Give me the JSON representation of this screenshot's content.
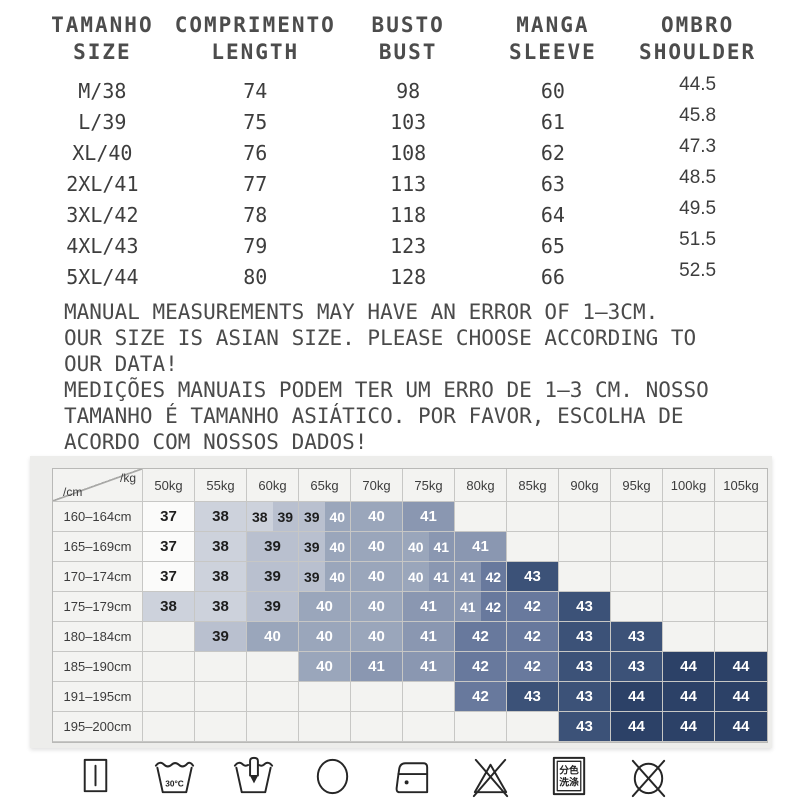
{
  "size_table": {
    "headers": [
      {
        "line1": "TAMANHO",
        "line2": "SIZE"
      },
      {
        "line1": "COMPRIMENTO",
        "line2": "LENGTH"
      },
      {
        "line1": "BUSTO",
        "line2": "BUST"
      },
      {
        "line1": "MANGA",
        "line2": "SLEEVE"
      },
      {
        "line1": "OMBRO",
        "line2": "SHOULDER"
      }
    ],
    "rows": [
      [
        "M/38",
        "74",
        "98",
        "60",
        "44.5"
      ],
      [
        "L/39",
        "75",
        "103",
        "61",
        "45.8"
      ],
      [
        "XL/40",
        "76",
        "108",
        "62",
        "47.3"
      ],
      [
        "2XL/41",
        "77",
        "113",
        "63",
        "48.5"
      ],
      [
        "3XL/42",
        "78",
        "118",
        "64",
        "49.5"
      ],
      [
        "4XL/43",
        "79",
        "123",
        "65",
        "51.5"
      ],
      [
        "5XL/44",
        "80",
        "128",
        "66",
        "52.5"
      ]
    ]
  },
  "notice": {
    "lines": [
      "MANUAL MEASUREMENTS MAY HAVE AN ERROR OF 1–3CM.",
      "OUR SIZE IS ASIAN SIZE. PLEASE CHOOSE ACCORDING TO",
      "OUR DATA!",
      "MEDIÇÕES MANUAIS PODEM TER UM ERRO DE 1–3 CM. NOSSO",
      "TAMANHO É TAMANHO ASIÁTICO. POR FAVOR, ESCOLHA DE",
      "ACORDO COM NOSSOS DADOS!"
    ]
  },
  "matrix": {
    "corner_top": "/kg",
    "corner_bottom": "/cm",
    "weight_columns": [
      "50kg",
      "55kg",
      "60kg",
      "65kg",
      "70kg",
      "75kg",
      "80kg",
      "85kg",
      "90kg",
      "95kg",
      "100kg",
      "105kg"
    ],
    "height_rows": [
      "160–164cm",
      "165–169cm",
      "170–174cm",
      "175–179cm",
      "180–184cm",
      "185–190cm",
      "191–195cm",
      "195–200cm"
    ],
    "cells": [
      [
        [
          "37"
        ],
        [
          "38"
        ],
        [
          "38",
          "39"
        ],
        [
          "39",
          "40"
        ],
        [
          "40"
        ],
        [
          "41"
        ],
        [],
        [],
        [],
        [],
        [],
        []
      ],
      [
        [
          "37"
        ],
        [
          "38"
        ],
        [
          "39"
        ],
        [
          "39",
          "40"
        ],
        [
          "40"
        ],
        [
          "40",
          "41"
        ],
        [
          "41"
        ],
        [],
        [],
        [],
        [],
        []
      ],
      [
        [
          "37"
        ],
        [
          "38"
        ],
        [
          "39"
        ],
        [
          "39",
          "40"
        ],
        [
          "40"
        ],
        [
          "40",
          "41"
        ],
        [
          "41",
          "42"
        ],
        [
          "43"
        ],
        [],
        [],
        [],
        []
      ],
      [
        [
          "38"
        ],
        [
          "38"
        ],
        [
          "39"
        ],
        [
          "40"
        ],
        [
          "40"
        ],
        [
          "41"
        ],
        [
          "41",
          "42"
        ],
        [
          "42"
        ],
        [
          "43"
        ],
        [],
        [],
        []
      ],
      [
        [],
        [
          "39"
        ],
        [
          "40"
        ],
        [
          "40"
        ],
        [
          "40"
        ],
        [
          "41"
        ],
        [
          "42"
        ],
        [
          "42"
        ],
        [
          "43"
        ],
        [
          "43"
        ],
        [],
        []
      ],
      [
        [],
        [],
        [],
        [
          "40"
        ],
        [
          "41"
        ],
        [
          "41"
        ],
        [
          "42"
        ],
        [
          "42"
        ],
        [
          "43"
        ],
        [
          "43"
        ],
        [
          "44"
        ],
        [
          "44"
        ]
      ],
      [
        [],
        [],
        [],
        [],
        [],
        [],
        [
          "42"
        ],
        [
          "43"
        ],
        [
          "43"
        ],
        [
          "44"
        ],
        [
          "44"
        ],
        [
          "44"
        ]
      ],
      [
        [],
        [],
        [],
        [],
        [],
        [],
        [],
        [],
        [
          "43"
        ],
        [
          "44"
        ],
        [
          "44"
        ],
        [
          "44"
        ]
      ]
    ],
    "size_styles": {
      "37": {
        "bg": "#fbfbfa",
        "fg": "#1e1e1e"
      },
      "38": {
        "bg": "#cdd2dc",
        "fg": "#1e1e1e"
      },
      "39": {
        "bg": "#b9c0cf",
        "fg": "#1e1e1e"
      },
      "40": {
        "bg": "#9aa6bb",
        "fg": "#ffffff"
      },
      "41": {
        "bg": "#8a97b1",
        "fg": "#ffffff"
      },
      "42": {
        "bg": "#68799d",
        "fg": "#ffffff"
      },
      "43": {
        "bg": "#3c5278",
        "fg": "#ffffff"
      },
      "44": {
        "bg": "#2c4167",
        "fg": "#ffffff"
      }
    }
  },
  "care_icons": {
    "names": [
      "drip-dry",
      "machine-wash-30c",
      "hand-wash",
      "dry-clean",
      "iron-low-heat",
      "do-not-bleach",
      "wash-colors-separately",
      "do-not-dry-clean"
    ],
    "wash_temp_label": "30°C",
    "separate_wash_line1": "分色",
    "separate_wash_line2": "洗涤"
  }
}
